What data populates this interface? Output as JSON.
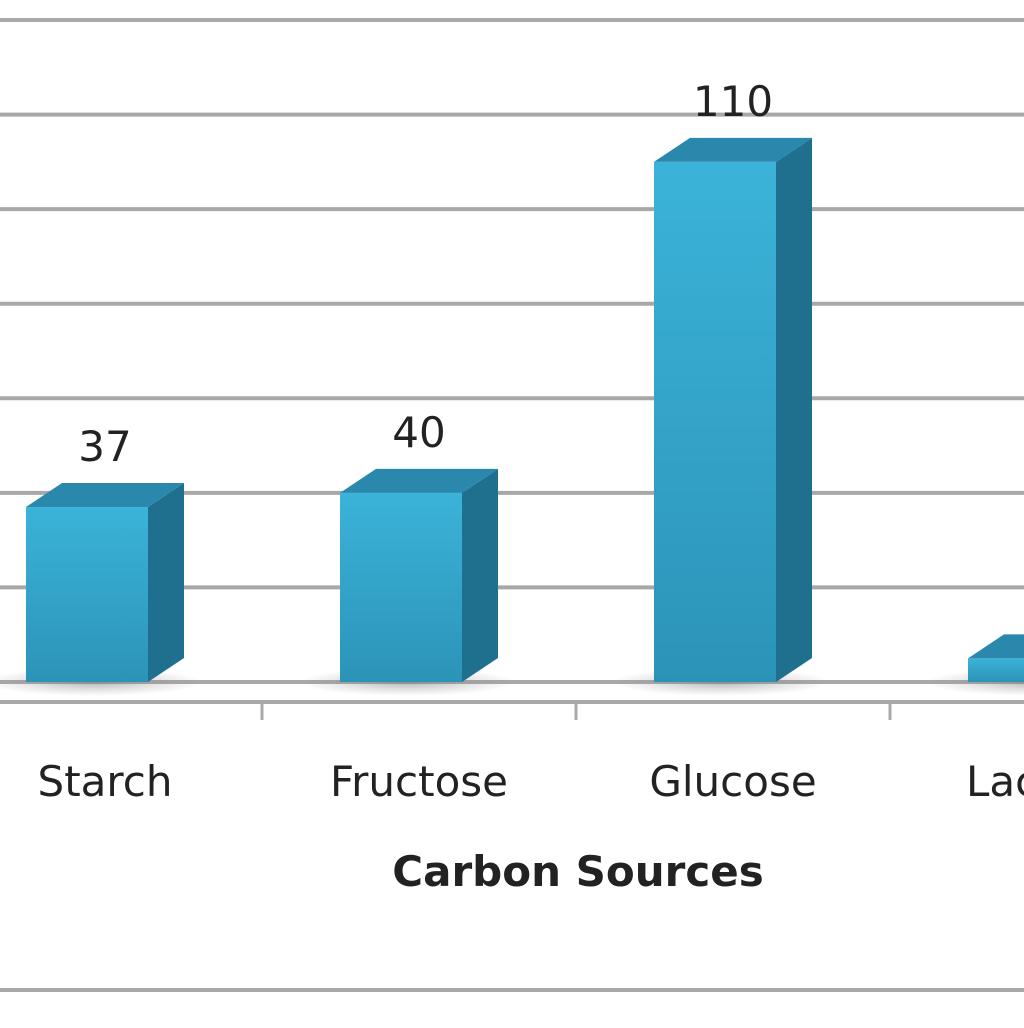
{
  "chart_data": {
    "type": "bar",
    "categories": [
      "Starch",
      "Fructose",
      "Glucose",
      "Lactose"
    ],
    "values": [
      37,
      40,
      110,
      5
    ],
    "xlabel": "Carbon Sources",
    "ylim": [
      0,
      140
    ],
    "grid": true,
    "gridline_step": 20,
    "data_labels": true,
    "style": "3d-column",
    "colors": {
      "bar_front_top": "#3bb3d9",
      "bar_front_bottom": "#2c93b8",
      "bar_side": "#1f6f8e",
      "bar_top": "#2a88ad",
      "grid": "#a8a8a8",
      "axis_text": "#222222"
    }
  }
}
